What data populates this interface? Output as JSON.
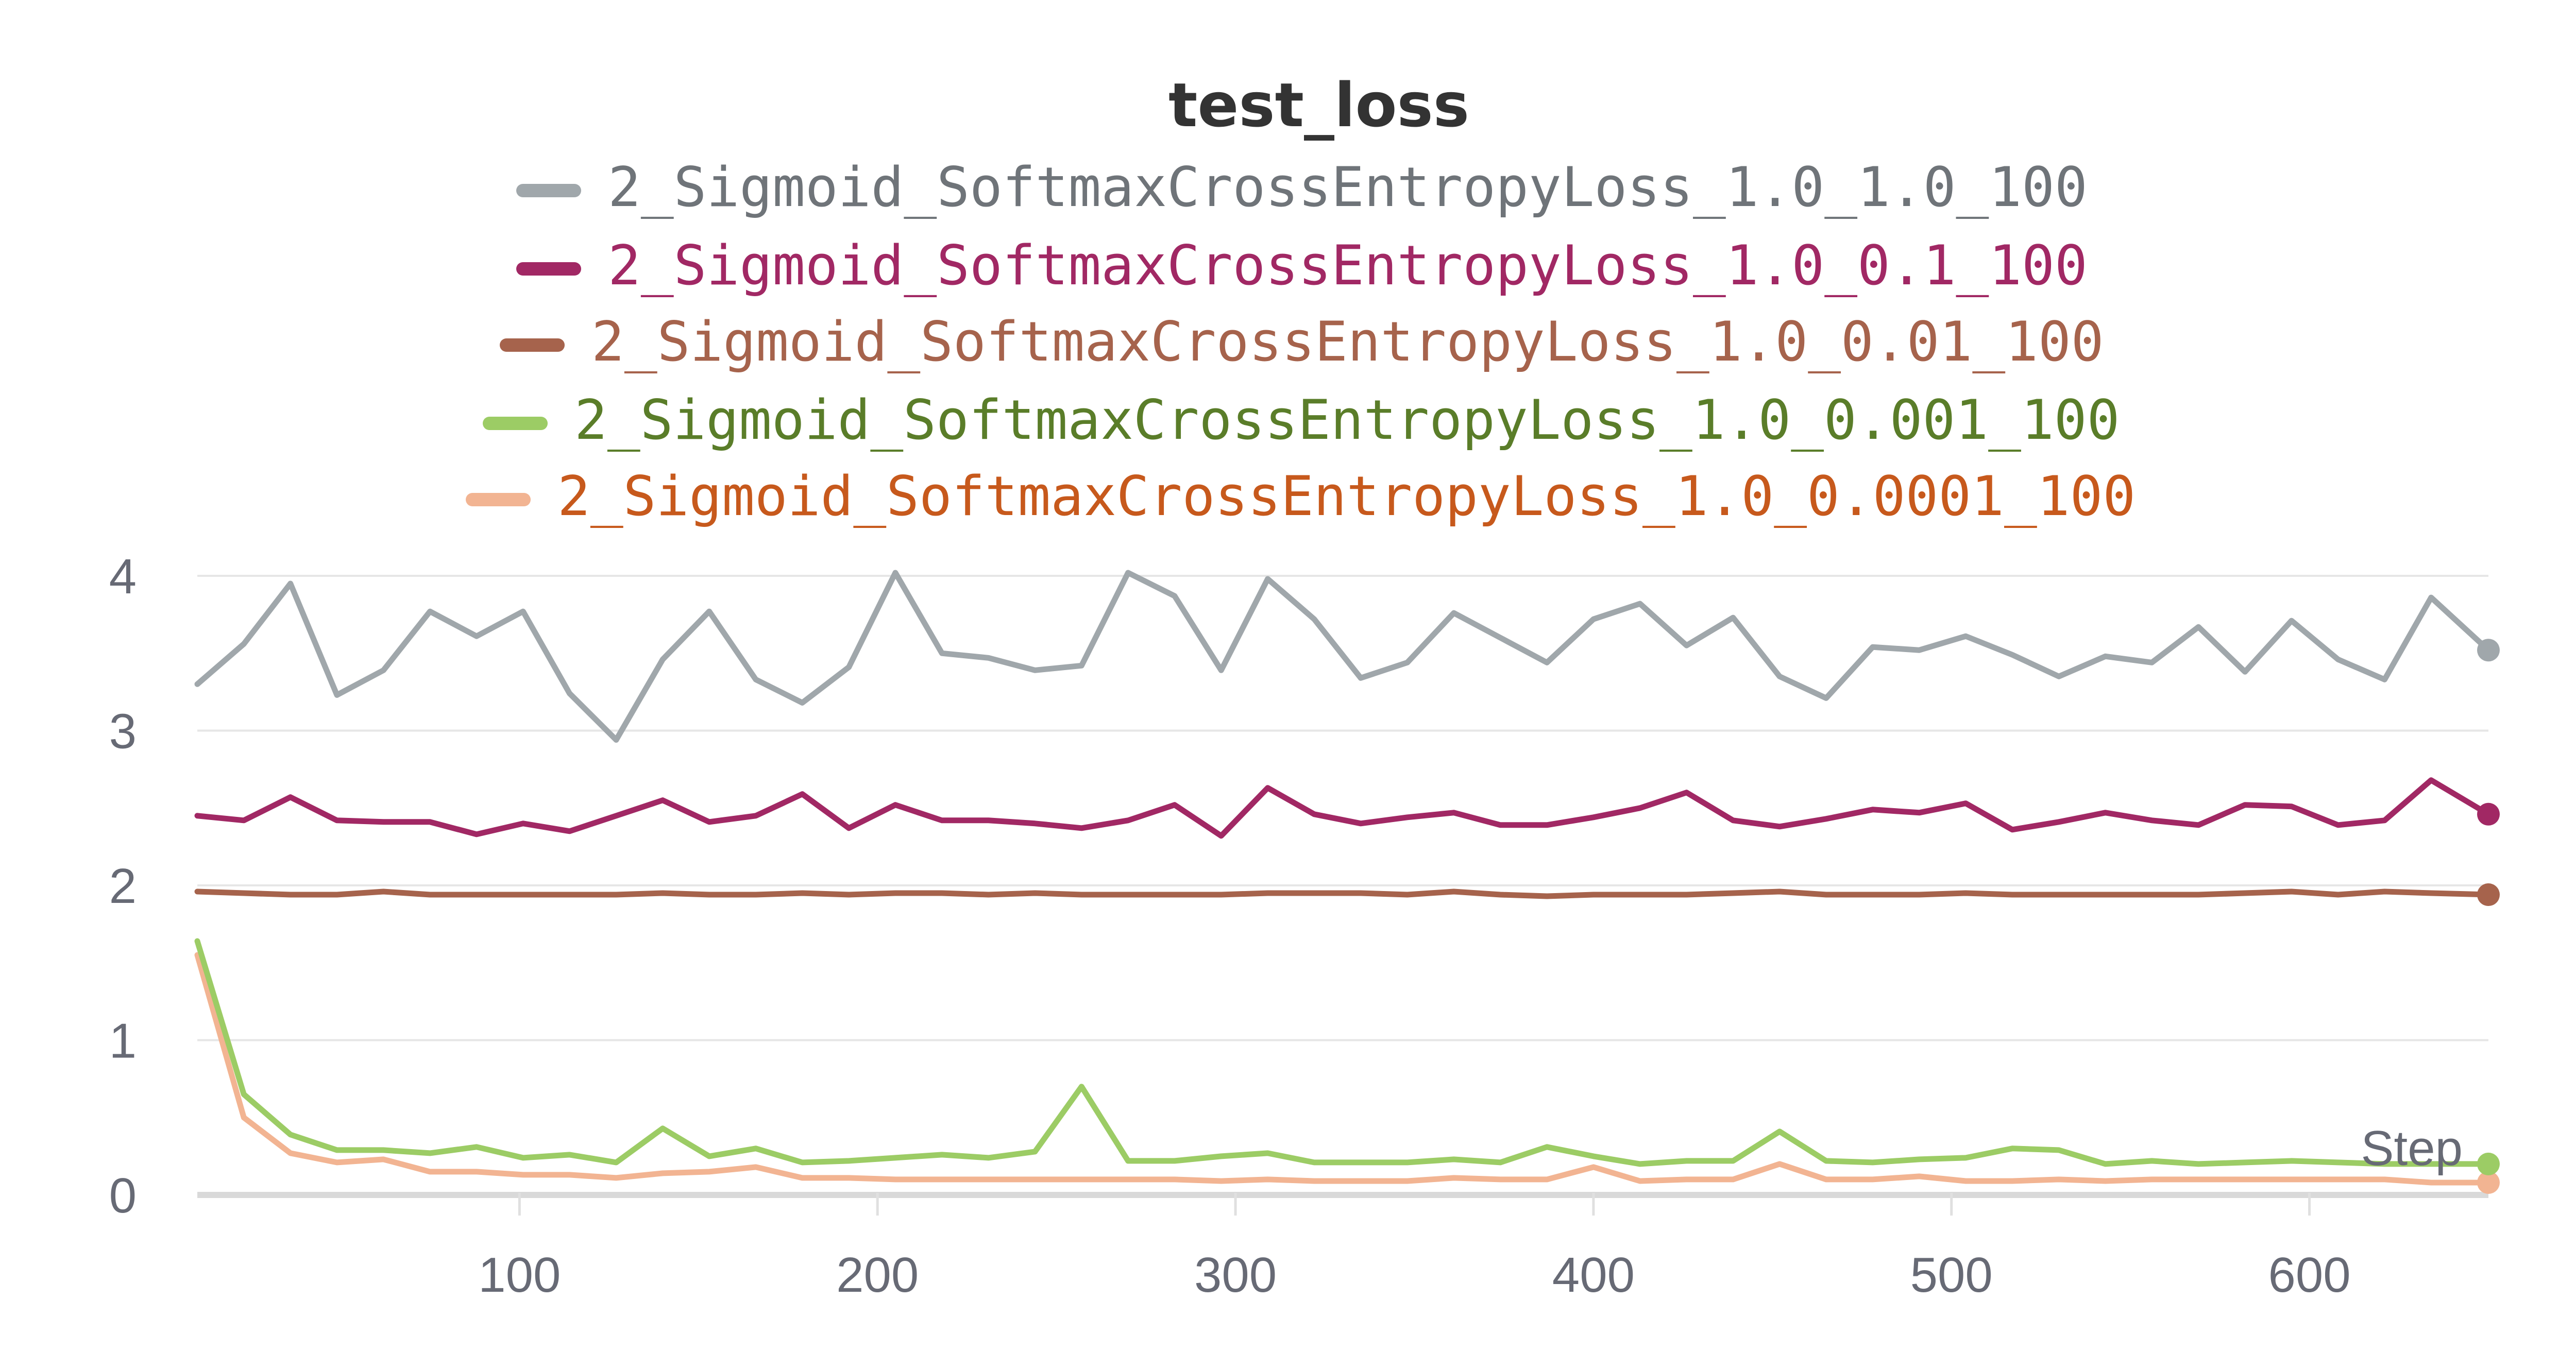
{
  "chart_data": {
    "type": "line",
    "title": "test_loss",
    "xlabel": "Step",
    "ylabel": "",
    "xlim": [
      10,
      650
    ],
    "ylim": [
      0,
      4
    ],
    "x_ticks": [
      "100",
      "200",
      "300",
      "400",
      "500",
      "600"
    ],
    "y_ticks": [
      "0",
      "1",
      "2",
      "3",
      "4"
    ],
    "grid": true,
    "legend_position": "top",
    "x": [
      10,
      23,
      36,
      49,
      62,
      75,
      88,
      101,
      114,
      127,
      140,
      153,
      166,
      179,
      192,
      205,
      218,
      231,
      244,
      257,
      270,
      283,
      296,
      309,
      322,
      335,
      348,
      361,
      374,
      387,
      400,
      413,
      426,
      439,
      452,
      465,
      478,
      491,
      504,
      517,
      530,
      543,
      556,
      569,
      582,
      595,
      608,
      621,
      634,
      650
    ],
    "series": [
      {
        "name": "2_Sigmoid_SoftmaxCrossEntropyLoss_1.0_1.0_100",
        "line_color": "#a0a7ab",
        "text_color": "#6f7479",
        "values": [
          3.3,
          3.56,
          3.95,
          3.23,
          3.39,
          3.77,
          3.61,
          3.77,
          3.24,
          2.94,
          3.46,
          3.77,
          3.33,
          3.18,
          3.41,
          4.02,
          3.5,
          3.47,
          3.39,
          3.42,
          4.02,
          3.87,
          3.39,
          3.98,
          3.72,
          3.34,
          3.44,
          3.76,
          3.6,
          3.44,
          3.72,
          3.82,
          3.55,
          3.73,
          3.35,
          3.21,
          3.54,
          3.52,
          3.61,
          3.49,
          3.35,
          3.48,
          3.44,
          3.67,
          3.38,
          3.71,
          3.46,
          3.33,
          3.86,
          3.52
        ]
      },
      {
        "name": "2_Sigmoid_SoftmaxCrossEntropyLoss_1.0_0.1_100",
        "line_color": "#a12864",
        "text_color": "#a12864",
        "values": [
          2.45,
          2.42,
          2.57,
          2.42,
          2.41,
          2.41,
          2.33,
          2.4,
          2.35,
          2.45,
          2.55,
          2.41,
          2.45,
          2.59,
          2.37,
          2.52,
          2.42,
          2.42,
          2.4,
          2.37,
          2.42,
          2.52,
          2.32,
          2.63,
          2.46,
          2.4,
          2.44,
          2.47,
          2.39,
          2.39,
          2.44,
          2.5,
          2.6,
          2.42,
          2.38,
          2.43,
          2.49,
          2.47,
          2.53,
          2.36,
          2.41,
          2.47,
          2.42,
          2.39,
          2.52,
          2.51,
          2.39,
          2.42,
          2.68,
          2.46
        ]
      },
      {
        "name": "2_Sigmoid_SoftmaxCrossEntropyLoss_1.0_0.01_100",
        "line_color": "#a6634c",
        "text_color": "#a6634c",
        "values": [
          1.96,
          1.95,
          1.94,
          1.94,
          1.96,
          1.94,
          1.94,
          1.94,
          1.94,
          1.94,
          1.95,
          1.94,
          1.94,
          1.95,
          1.94,
          1.95,
          1.95,
          1.94,
          1.95,
          1.94,
          1.94,
          1.94,
          1.94,
          1.95,
          1.95,
          1.95,
          1.94,
          1.96,
          1.94,
          1.93,
          1.94,
          1.94,
          1.94,
          1.95,
          1.96,
          1.94,
          1.94,
          1.94,
          1.95,
          1.94,
          1.94,
          1.94,
          1.94,
          1.94,
          1.95,
          1.96,
          1.94,
          1.96,
          1.95,
          1.94
        ]
      },
      {
        "name": "2_Sigmoid_SoftmaxCrossEntropyLoss_1.0_0.001_100",
        "line_color": "#9ccc65",
        "text_color": "#5a7d29",
        "values": [
          1.64,
          0.65,
          0.39,
          0.29,
          0.29,
          0.27,
          0.31,
          0.24,
          0.26,
          0.21,
          0.43,
          0.25,
          0.3,
          0.21,
          0.22,
          0.24,
          0.26,
          0.24,
          0.28,
          0.7,
          0.22,
          0.22,
          0.25,
          0.27,
          0.21,
          0.21,
          0.21,
          0.23,
          0.21,
          0.31,
          0.25,
          0.2,
          0.22,
          0.22,
          0.41,
          0.22,
          0.21,
          0.23,
          0.24,
          0.3,
          0.29,
          0.2,
          0.22,
          0.2,
          0.21,
          0.22,
          0.21,
          0.2,
          0.2,
          0.2
        ]
      },
      {
        "name": "2_Sigmoid_SoftmaxCrossEntropyLoss_1.0_0.0001_100",
        "line_color": "#f2b492",
        "text_color": "#c7591c",
        "values": [
          1.55,
          0.5,
          0.27,
          0.21,
          0.23,
          0.15,
          0.15,
          0.13,
          0.13,
          0.11,
          0.14,
          0.15,
          0.18,
          0.11,
          0.11,
          0.1,
          0.1,
          0.1,
          0.1,
          0.1,
          0.1,
          0.1,
          0.09,
          0.1,
          0.09,
          0.09,
          0.09,
          0.11,
          0.1,
          0.1,
          0.18,
          0.09,
          0.1,
          0.1,
          0.2,
          0.1,
          0.1,
          0.12,
          0.09,
          0.09,
          0.1,
          0.09,
          0.1,
          0.1,
          0.1,
          0.1,
          0.1,
          0.1,
          0.08,
          0.08
        ]
      }
    ]
  }
}
